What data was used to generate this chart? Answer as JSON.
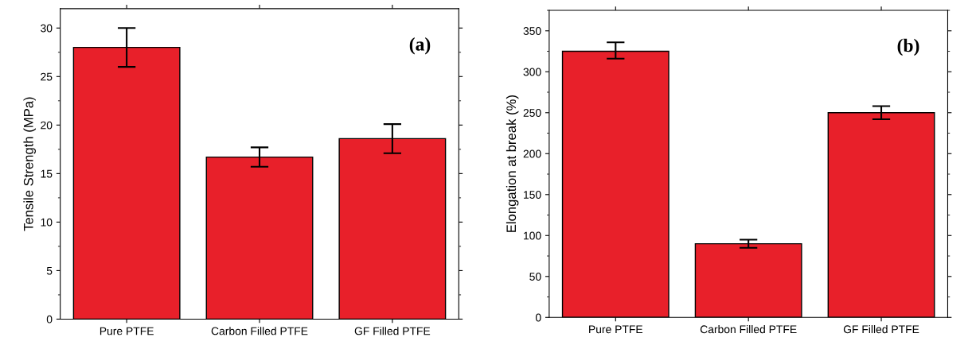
{
  "chart_data": [
    {
      "type": "bar",
      "categories": [
        "Pure PTFE",
        "Carbon Filled PTFE",
        "GF Filled PTFE"
      ],
      "values": [
        28.0,
        16.7,
        18.6
      ],
      "errors": [
        [
          26.0,
          30.0
        ],
        [
          15.7,
          17.7
        ],
        [
          17.1,
          20.1
        ]
      ],
      "color": "#e8202a",
      "ylabel": "Tensile Strength (MPa)",
      "ylim": [
        0,
        32
      ],
      "yticks": [
        0,
        5,
        10,
        15,
        20,
        25,
        30
      ],
      "annotations": [
        "(a)"
      ],
      "grid": false,
      "legend": false
    },
    {
      "type": "bar",
      "categories": [
        "Pure PTFE",
        "Carbon Filled PTFE",
        "GF Filled PTFE"
      ],
      "values": [
        325,
        90,
        250
      ],
      "errors": [
        [
          316,
          336
        ],
        [
          85,
          95
        ],
        [
          242,
          258
        ]
      ],
      "color": "#e8202a",
      "ylabel": "Elongation at break (%)",
      "ylim": [
        0,
        375
      ],
      "yticks": [
        0,
        50,
        100,
        150,
        200,
        250,
        300,
        350
      ],
      "annotations": [
        "(b)"
      ],
      "grid": false,
      "legend": false
    }
  ]
}
